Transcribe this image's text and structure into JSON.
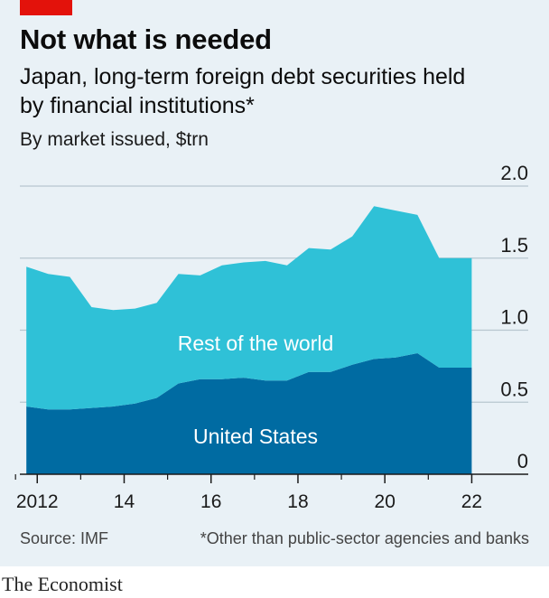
{
  "header": {
    "title": "Not what is needed",
    "subtitle": "Japan, long-term foreign debt securities held by financial institutions*",
    "unit": "By market issued, $trn"
  },
  "footer": {
    "source": "Source: IMF",
    "footnote": "*Other than public-sector agencies and banks",
    "logo": "The Economist"
  },
  "colors": {
    "accent": "#e3120b",
    "background": "#e9f1f6",
    "united_states": "#006ba2",
    "rest_of_world": "#2fc1d7"
  },
  "chart_data": {
    "type": "area",
    "stacked": true,
    "x": [
      2011.75,
      2012.25,
      2012.75,
      2013.25,
      2013.75,
      2014.25,
      2014.75,
      2015.25,
      2015.75,
      2016.25,
      2016.75,
      2017.25,
      2017.75,
      2018.25,
      2018.75,
      2019.25,
      2019.75,
      2020.25,
      2020.75,
      2021.25,
      2021.75
    ],
    "series": [
      {
        "name": "United States",
        "values": [
          0.47,
          0.45,
          0.45,
          0.46,
          0.47,
          0.49,
          0.53,
          0.63,
          0.66,
          0.66,
          0.67,
          0.65,
          0.65,
          0.71,
          0.71,
          0.76,
          0.8,
          0.81,
          0.84,
          0.74,
          0.74
        ]
      },
      {
        "name": "Rest of the world",
        "values": [
          0.97,
          0.94,
          0.92,
          0.7,
          0.67,
          0.66,
          0.66,
          0.76,
          0.72,
          0.79,
          0.8,
          0.83,
          0.8,
          0.86,
          0.85,
          0.89,
          1.06,
          1.02,
          0.96,
          0.76,
          0.76
        ]
      }
    ],
    "x_ticks": [
      2012,
      2014,
      2016,
      2018,
      2020,
      2022
    ],
    "x_tick_labels": [
      "2012",
      "14",
      "16",
      "18",
      "20",
      "22"
    ],
    "y_ticks": [
      0,
      0.5,
      1.0,
      1.5,
      2.0
    ],
    "y_tick_labels": [
      "0",
      "0.5",
      "1.0",
      "1.5",
      "2.0"
    ],
    "ylim": [
      0,
      2.0
    ],
    "xlim": [
      2011.6,
      2023.3
    ],
    "x_end": 2022.0,
    "grid": true,
    "y_axis_position": "right"
  }
}
